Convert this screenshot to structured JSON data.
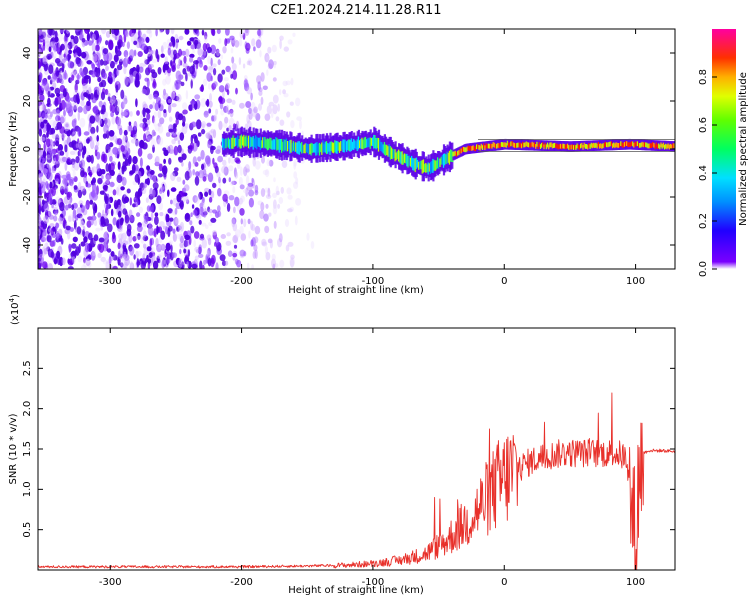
{
  "title": "C2E1.2024.214.11.28.R11",
  "colors": {
    "axis": "#000000",
    "snr_line": "#e8302a",
    "spectrogram_low": "#6a00e6",
    "spectrogram_high": "#ff0000"
  },
  "chart_data": [
    {
      "type": "heatmap",
      "xlabel": "Height of straight line (km)",
      "ylabel": "Frequency (Hz)",
      "xlim": [
        -355,
        130
      ],
      "ylim": [
        -50,
        50
      ],
      "xticks": [
        -300,
        -200,
        -100,
        0,
        100
      ],
      "yticks": [
        -40,
        -20,
        0,
        20,
        40
      ],
      "xtick_labels": [
        "-300",
        "-200",
        "-100",
        "0",
        "100"
      ],
      "ytick_labels": [
        "-40",
        "-20",
        "0",
        "20",
        "40"
      ],
      "colorbar": {
        "label": "Normalized spectral amplitude",
        "range": [
          0,
          1
        ],
        "ticks": [
          0.0,
          0.2,
          0.4,
          0.6,
          0.8
        ],
        "tick_labels": [
          "0.0",
          "0.2",
          "0.4",
          "0.6",
          "0.8"
        ],
        "colormap": "rainbow"
      },
      "ridge": [
        {
          "x": -215,
          "freq": 2
        },
        {
          "x": -200,
          "freq": 3
        },
        {
          "x": -175,
          "freq": 2
        },
        {
          "x": -150,
          "freq": 0
        },
        {
          "x": -125,
          "freq": 1
        },
        {
          "x": -100,
          "freq": 3
        },
        {
          "x": -85,
          "freq": -2
        },
        {
          "x": -70,
          "freq": -6
        },
        {
          "x": -58,
          "freq": -8
        },
        {
          "x": -45,
          "freq": -4
        },
        {
          "x": -30,
          "freq": 0
        },
        {
          "x": -15,
          "freq": 1
        },
        {
          "x": 0,
          "freq": 2
        },
        {
          "x": 50,
          "freq": 1
        },
        {
          "x": 95,
          "freq": 2
        },
        {
          "x": 130,
          "freq": 1
        }
      ]
    },
    {
      "type": "line",
      "xlabel": "Height of straight line (km)",
      "ylabel": "SNR (10 * v/v)",
      "y_scale_label": "(x10",
      "y_scale_exponent": "4",
      "xlim": [
        -355,
        130
      ],
      "ylim": [
        0,
        3
      ],
      "xticks": [
        -300,
        -200,
        -100,
        0,
        100
      ],
      "yticks": [
        0.5,
        1.0,
        1.5,
        2.0,
        2.5
      ],
      "xtick_labels": [
        "-300",
        "-200",
        "-100",
        "0",
        "100"
      ],
      "ytick_labels": [
        "0.5",
        "1.0",
        "1.5",
        "2.0",
        "2.5"
      ],
      "series": [
        {
          "x": [
            -355,
            -300,
            -250,
            -200,
            -150,
            -120,
            -100,
            -80,
            -60,
            -45,
            -35,
            -25,
            -15,
            -5,
            5,
            15,
            25,
            35,
            45,
            55,
            65,
            75,
            85,
            92,
            97,
            100,
            103,
            106,
            110,
            120,
            130
          ],
          "y": [
            0.04,
            0.04,
            0.04,
            0.04,
            0.05,
            0.06,
            0.08,
            0.12,
            0.2,
            0.35,
            0.5,
            0.65,
            0.85,
            1.05,
            1.2,
            1.3,
            1.38,
            1.42,
            1.45,
            1.45,
            1.45,
            1.45,
            1.45,
            1.4,
            0.8,
            0.3,
            1.3,
            1.45,
            1.48,
            1.48,
            1.47
          ]
        }
      ]
    }
  ]
}
